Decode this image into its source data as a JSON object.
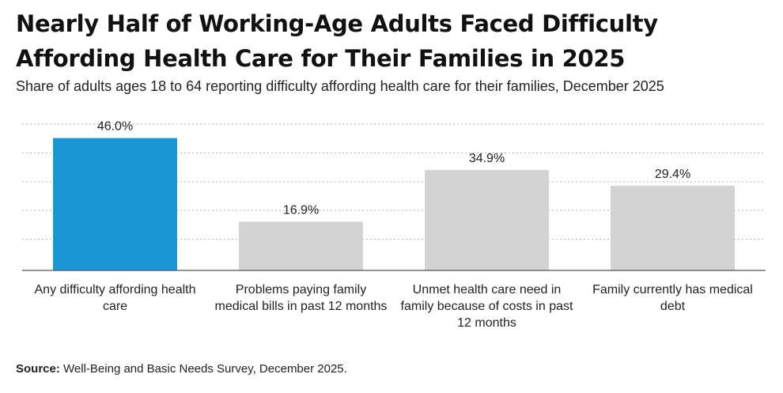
{
  "header": {
    "title_line1": "Nearly Half of Working-Age Adults Faced Difficulty",
    "title_line2": "Affording Health Care for Their Families in 2025",
    "subtitle": "Share of adults ages 18 to 64 reporting difficulty affording health care for their families, December 2025"
  },
  "footer": {
    "source_label": "Source:",
    "source_text": " Well-Being and Basic Needs Survey, December 2025."
  },
  "colors": {
    "highlight": "#1a96d4",
    "bar": "#d3d3d3",
    "grid": "#bbbbbb",
    "axis": "#555555"
  },
  "chart_data": {
    "type": "bar",
    "categories": [
      [
        "Any difficulty affording health",
        "care"
      ],
      [
        "Problems paying family",
        "medical bills in past 12 months"
      ],
      [
        "Unmet health care need in",
        "family because of costs in past",
        "12 months"
      ],
      [
        "Family currently has medical",
        "debt"
      ]
    ],
    "values": [
      46.0,
      16.9,
      34.9,
      29.4
    ],
    "value_labels": [
      "46.0%",
      "16.9%",
      "34.9%",
      "29.4%"
    ],
    "highlight_index": 0,
    "ylim": [
      0,
      50
    ],
    "grid": true,
    "grid_values": [
      10,
      20,
      30,
      40,
      50
    ],
    "xlabel": "",
    "ylabel": ""
  }
}
